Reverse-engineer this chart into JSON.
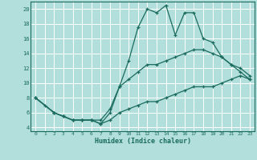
{
  "xlabel": "Humidex (Indice chaleur)",
  "background_color": "#b2dfdb",
  "grid_color": "#ffffff",
  "line_color": "#1a6b5e",
  "xlim": [
    -0.5,
    23.5
  ],
  "ylim": [
    3.5,
    21.0
  ],
  "xticks": [
    0,
    1,
    2,
    3,
    4,
    5,
    6,
    7,
    8,
    9,
    10,
    11,
    12,
    13,
    14,
    15,
    16,
    17,
    18,
    19,
    20,
    21,
    22,
    23
  ],
  "yticks": [
    4,
    6,
    8,
    10,
    12,
    14,
    16,
    18,
    20
  ],
  "line1_x": [
    0,
    1,
    2,
    3,
    4,
    5,
    6,
    7,
    8,
    9,
    10,
    11,
    12,
    13,
    14,
    15,
    16,
    17,
    18,
    19,
    20,
    21,
    22,
    23
  ],
  "line1_y": [
    8,
    7,
    6,
    5.5,
    5,
    5,
    5,
    4.5,
    6.0,
    9.5,
    13,
    17.5,
    20,
    19.5,
    20.5,
    16.5,
    19.5,
    19.5,
    16,
    15.5,
    13.5,
    12.5,
    11.5,
    10.5
  ],
  "line2_x": [
    0,
    2,
    3,
    4,
    5,
    6,
    7,
    8,
    9,
    10,
    11,
    12,
    13,
    14,
    15,
    16,
    17,
    18,
    19,
    20,
    21,
    22,
    23
  ],
  "line2_y": [
    8,
    6,
    5.5,
    5,
    5,
    5,
    5,
    6.5,
    9.5,
    10.5,
    11.5,
    12.5,
    12.5,
    13,
    13.5,
    14,
    14.5,
    14.5,
    14,
    13.5,
    12.5,
    12,
    11
  ],
  "line3_x": [
    0,
    2,
    3,
    4,
    5,
    6,
    7,
    8,
    9,
    10,
    11,
    12,
    13,
    14,
    15,
    16,
    17,
    18,
    19,
    20,
    21,
    22,
    23
  ],
  "line3_y": [
    8,
    6,
    5.5,
    5,
    5,
    5,
    4.5,
    5,
    6,
    6.5,
    7,
    7.5,
    7.5,
    8,
    8.5,
    9,
    9.5,
    9.5,
    9.5,
    10,
    10.5,
    11,
    10.5
  ]
}
